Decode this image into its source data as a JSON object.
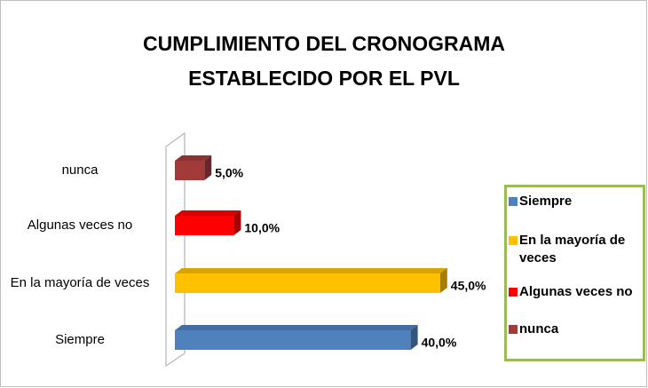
{
  "chart_data": {
    "type": "bar3d_horizontal",
    "title": "CUMPLIMIENTO DEL CRONOGRAMA ESTABLECIDO POR EL PVL",
    "categories": [
      "Siempre",
      "En la mayoría de veces",
      "Algunas veces no",
      "nunca"
    ],
    "values": [
      40,
      45,
      10,
      5
    ],
    "value_labels": [
      "40,0%",
      "45,0%",
      "10,0%",
      "5,0%"
    ],
    "colors": [
      "#4f81bd",
      "#ffc000",
      "#ff0000",
      "#a33a3a"
    ],
    "xlim": [
      0,
      50
    ],
    "legend": "right"
  }
}
